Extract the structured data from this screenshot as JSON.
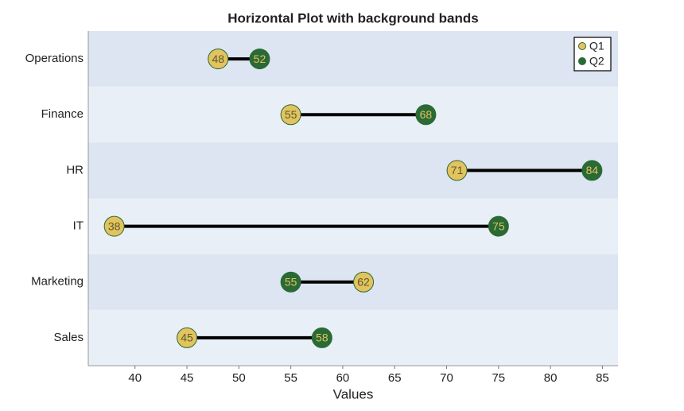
{
  "chart_data": {
    "type": "dumbbell",
    "title": "Horizontal Plot with background bands",
    "x_label": "Values",
    "categories": [
      "Operations",
      "Finance",
      "HR",
      "IT",
      "Marketing",
      "Sales"
    ],
    "series": [
      {
        "name": "Q1",
        "color": "#e2c35e",
        "values": [
          48,
          55,
          71,
          38,
          62,
          45
        ]
      },
      {
        "name": "Q2",
        "color": "#2a6a35",
        "values": [
          52,
          68,
          84,
          75,
          55,
          58
        ]
      }
    ],
    "xlim": [
      35.5,
      86.5
    ],
    "xticks": [
      40,
      45,
      50,
      55,
      60,
      65,
      70,
      75,
      80,
      85
    ],
    "legend": "upper right"
  }
}
